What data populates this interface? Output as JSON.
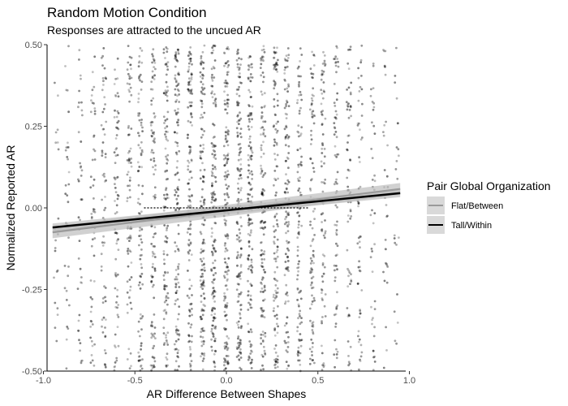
{
  "chart_data": {
    "type": "scatter",
    "title": "Random Motion Condition",
    "subtitle": "Responses are attracted to the uncued AR",
    "xlabel": "AR Difference Between Shapes",
    "ylabel": "Normalized Reported AR",
    "xlim": [
      -0.98,
      0.98
    ],
    "ylim": [
      -0.5,
      0.5
    ],
    "xticks": [
      -1.0,
      -0.5,
      0.0,
      0.5,
      1.0
    ],
    "xtick_labels": [
      "-1.0",
      "-0.5",
      "0.0",
      "0.5",
      "1.0"
    ],
    "yticks": [
      -0.5,
      -0.25,
      0.0,
      0.25,
      0.5
    ],
    "ytick_labels": [
      "-0.50",
      "-0.25",
      "0.00",
      "0.25",
      "0.50"
    ],
    "grid": false,
    "point_color": "#000000",
    "legend": {
      "title": "Pair Global Organization",
      "position": "right",
      "entries": [
        {
          "label": "Flat/Between",
          "color": "#9a9a9a"
        },
        {
          "label": "Tall/Within",
          "color": "#000000"
        }
      ]
    },
    "series": [
      {
        "name": "Flat/Between",
        "type": "line",
        "x": [
          -0.95,
          0.95
        ],
        "y": [
          -0.075,
          0.058
        ],
        "ci": 0.018,
        "color": "#9a9a9a"
      },
      {
        "name": "Tall/Within",
        "type": "line",
        "x": [
          -0.95,
          0.95
        ],
        "y": [
          -0.06,
          0.045
        ],
        "ci": 0.012,
        "color": "#000000"
      }
    ],
    "reference_segment": {
      "x": [
        -0.45,
        0.45
      ],
      "y": [
        0.0,
        0.0
      ],
      "style": "dotted"
    },
    "scatter_columns": {
      "x": [
        -0.93,
        -0.87,
        -0.8,
        -0.73,
        -0.67,
        -0.6,
        -0.53,
        -0.47,
        -0.4,
        -0.33,
        -0.27,
        -0.2,
        -0.13,
        -0.07,
        0.0,
        0.07,
        0.13,
        0.2,
        0.27,
        0.33,
        0.4,
        0.47,
        0.53,
        0.6,
        0.67,
        0.73,
        0.8,
        0.87,
        0.93
      ],
      "points_per_column": [
        22,
        32,
        42,
        55,
        65,
        75,
        85,
        95,
        110,
        120,
        130,
        140,
        150,
        160,
        170,
        160,
        150,
        140,
        130,
        120,
        110,
        95,
        85,
        75,
        65,
        55,
        42,
        32,
        22
      ],
      "y_range": [
        -0.5,
        0.5
      ]
    }
  }
}
